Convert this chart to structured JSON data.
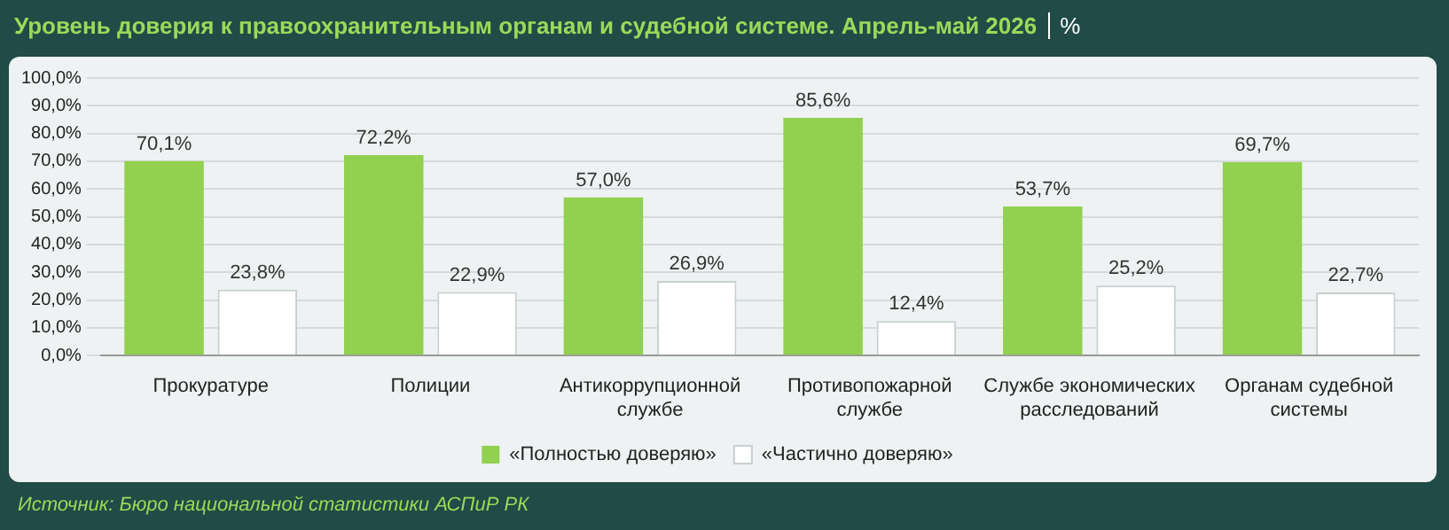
{
  "chart_data": {
    "type": "bar",
    "title": "Уровень доверия к правоохранительным органам и судебной системе. Апрель-май 2026",
    "subtitle": "%",
    "categories": [
      "Прокуратуре",
      "Полиции",
      "Антикоррупционной службе",
      "Противопожарной службе",
      "Службе экономических расследований",
      "Органам судебной системы"
    ],
    "series": [
      {
        "name": "«Полностью доверяю»",
        "color": "#92d050",
        "values": [
          70.1,
          72.2,
          57.0,
          85.6,
          53.7,
          69.7
        ],
        "value_labels": [
          "70,1%",
          "72,2%",
          "57,0%",
          "85,6%",
          "53,7%",
          "69,7%"
        ]
      },
      {
        "name": "«Частично доверяю»",
        "color": "#ffffff",
        "values": [
          23.8,
          22.9,
          26.9,
          12.4,
          25.2,
          22.7
        ],
        "value_labels": [
          "23,8%",
          "22,9%",
          "26,9%",
          "12,4%",
          "25,2%",
          "22,7%"
        ]
      }
    ],
    "ylim": [
      0,
      100
    ],
    "yticks": [
      {
        "value": 0,
        "label": "0,0%"
      },
      {
        "value": 10,
        "label": "10,0%"
      },
      {
        "value": 20,
        "label": "20,0%"
      },
      {
        "value": 30,
        "label": "30,0%"
      },
      {
        "value": 40,
        "label": "40,0%"
      },
      {
        "value": 50,
        "label": "50,0%"
      },
      {
        "value": 60,
        "label": "60,0%"
      },
      {
        "value": 70,
        "label": "70,0%"
      },
      {
        "value": 80,
        "label": "80,0%"
      },
      {
        "value": 90,
        "label": "90,0%"
      },
      {
        "value": 100,
        "label": "100,0%"
      }
    ],
    "grid": "y",
    "legend": "bottom",
    "annotations": [
      "Источник: Бюро национальной статистики АСПиР РК"
    ]
  }
}
